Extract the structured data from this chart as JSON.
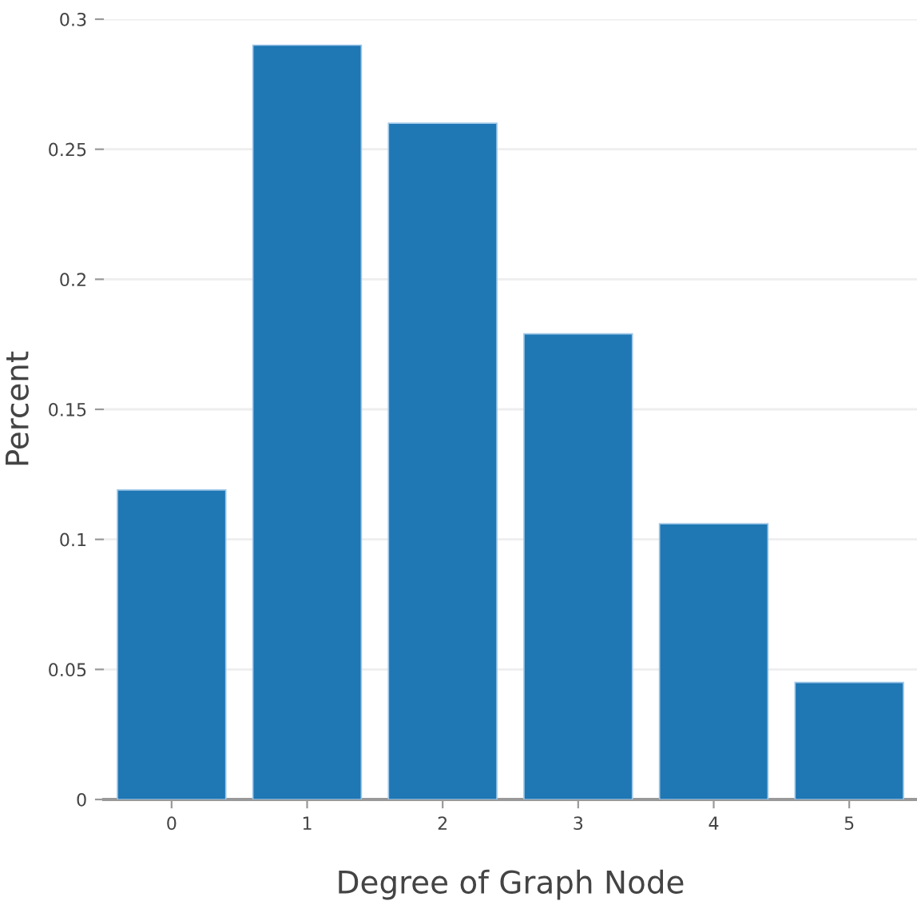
{
  "chart_data": {
    "type": "bar",
    "xlabel": "Degree of Graph Node",
    "ylabel": "Percent",
    "categories": [
      "0",
      "1",
      "2",
      "3",
      "4",
      "5"
    ],
    "values": [
      0.119,
      0.29,
      0.26,
      0.179,
      0.106,
      0.045
    ],
    "color": "#1f77b4",
    "ylim": [
      0,
      0.3
    ],
    "yticks": [
      0,
      0.05,
      0.1,
      0.15,
      0.2,
      0.25,
      0.3
    ],
    "grid": "y"
  }
}
